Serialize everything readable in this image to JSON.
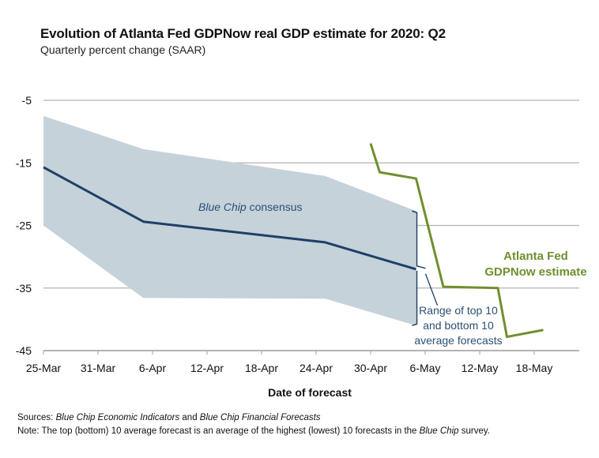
{
  "title": "Evolution of Atlanta Fed GDPNow real GDP estimate for 2020: Q2",
  "subtitle": "Quarterly percent change (SAAR)",
  "footer": {
    "sources_label": "Sources:",
    "sources_src1": "Blue Chip Economic Indicators",
    "sources_and": "and",
    "sources_src2": "Blue Chip Financial Forecasts",
    "note_label": "Note:",
    "note_text": "The top (bottom) 10 average forecast is an average of the highest (lowest) 10 forecasts in the",
    "note_italic": "Blue Chip",
    "note_end": "survey."
  },
  "colors": {
    "consensus": "#1f3f66",
    "band": "#c5d2da",
    "gdpnow": "#6f8f2f",
    "grid": "#b3b3b3",
    "annotation": "#2c5074"
  },
  "chart_data": {
    "type": "line",
    "title": "Evolution of Atlanta Fed GDPNow real GDP estimate for 2020: Q2",
    "subtitle": "Quarterly percent change (SAAR)",
    "xlabel": "Date of forecast",
    "ylabel": "",
    "ylim": [
      -45,
      -5
    ],
    "yticks": [
      -5,
      -15,
      -25,
      -35,
      -45
    ],
    "x_unit": "days since 25-Mar",
    "xlim": [
      0,
      60
    ],
    "xticks": [
      {
        "day": 0,
        "label": "25-Mar"
      },
      {
        "day": 6,
        "label": "31-Mar"
      },
      {
        "day": 12,
        "label": "6-Apr"
      },
      {
        "day": 18,
        "label": "12-Apr"
      },
      {
        "day": 24,
        "label": "18-Apr"
      },
      {
        "day": 30,
        "label": "24-Apr"
      },
      {
        "day": 36,
        "label": "30-Apr"
      },
      {
        "day": 42,
        "label": "6-May"
      },
      {
        "day": 48,
        "label": "12-May"
      },
      {
        "day": 54,
        "label": "18-May"
      }
    ],
    "grid": true,
    "series": [
      {
        "name": "Blue Chip consensus",
        "x": [
          0,
          11,
          31,
          41
        ],
        "values": [
          -15.7,
          -24.4,
          -27.7,
          -32.0
        ]
      },
      {
        "name": "Top 10 average",
        "x": [
          0,
          11,
          31,
          41
        ],
        "values": [
          -7.5,
          -12.8,
          -17.1,
          -22.7
        ]
      },
      {
        "name": "Bottom 10 average",
        "x": [
          0,
          11,
          31,
          41
        ],
        "values": [
          -25.0,
          -36.6,
          -36.7,
          -41.0
        ]
      },
      {
        "name": "Atlanta Fed GDPNow estimate",
        "x": [
          36,
          37,
          41,
          44,
          50,
          51,
          55
        ],
        "values": [
          -11.9,
          -16.5,
          -17.5,
          -34.8,
          -35.0,
          -42.8,
          -41.7
        ]
      }
    ],
    "annotations": {
      "consensus_label_italic": "Blue Chip",
      "consensus_label_rest": "consensus",
      "range_label": [
        "Range of top 10",
        "and bottom 10",
        "average forecasts"
      ],
      "gdpnow_label": [
        "Atlanta Fed",
        "GDPNow estimate"
      ]
    }
  }
}
